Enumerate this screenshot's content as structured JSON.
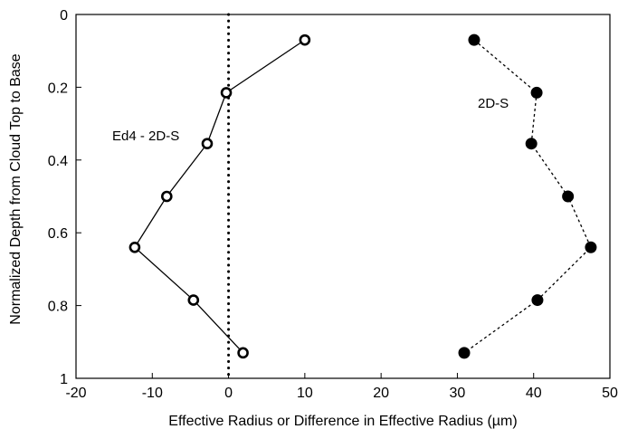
{
  "chart_data": {
    "type": "line",
    "title": "",
    "xlabel": "Effective Radius or Difference in Effective Radius (µm)",
    "ylabel": "Normalized Depth from Cloud Top to Base",
    "xlim": [
      -20,
      50
    ],
    "ylim": [
      0,
      1
    ],
    "y_inverted": true,
    "grid": false,
    "legend": "none",
    "x_ticks": [
      -20,
      -10,
      0,
      10,
      20,
      30,
      40,
      50
    ],
    "y_ticks": [
      0,
      0.2,
      0.4,
      0.6,
      0.8,
      1
    ],
    "x_tick_labels": [
      "-20",
      "-10",
      "0",
      "10",
      "20",
      "30",
      "40",
      "50"
    ],
    "y_tick_labels": [
      "0",
      "0.2",
      "0.4",
      "0.6",
      "0.8",
      "1"
    ],
    "reference_line": {
      "x": 0,
      "style": "dotted",
      "color": "#000000"
    },
    "series": [
      {
        "name": "Ed4 - 2D-S",
        "marker": "open-circle",
        "line_style": "solid",
        "color": "#000000",
        "x": [
          10.0,
          -0.3,
          -2.8,
          -8.1,
          -12.3,
          -4.6,
          1.9
        ],
        "y": [
          0.07,
          0.215,
          0.355,
          0.5,
          0.64,
          0.785,
          0.93
        ]
      },
      {
        "name": "2D-S",
        "marker": "filled-circle",
        "line_style": "dotted",
        "color": "#000000",
        "x": [
          32.2,
          40.4,
          39.7,
          44.5,
          47.5,
          40.5,
          30.9
        ],
        "y": [
          0.07,
          0.215,
          0.355,
          0.5,
          0.64,
          0.785,
          0.93
        ]
      }
    ]
  }
}
